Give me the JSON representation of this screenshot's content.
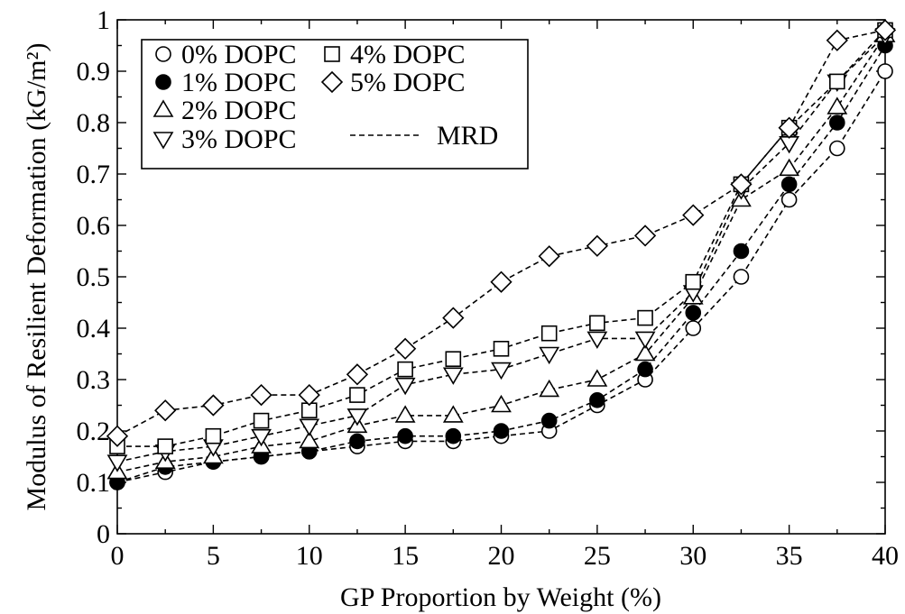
{
  "chart_data": {
    "type": "line",
    "xlabel": "GP Proportion by Weight (%)",
    "ylabel": "Modulus of Resilient Deformation (kG/m²)",
    "xlim": [
      0,
      40
    ],
    "ylim": [
      0,
      1
    ],
    "xticks": [
      0,
      5,
      10,
      15,
      20,
      25,
      30,
      35,
      40
    ],
    "yticks": [
      0,
      0.1,
      0.2,
      0.3,
      0.4,
      0.5,
      0.6,
      0.7,
      0.8,
      0.9,
      1
    ],
    "ytick_labels": [
      "0",
      "0.1",
      "0.2",
      "0.3",
      "0.4",
      "0.5",
      "0.6",
      "0.7",
      "0.8",
      "0.9",
      "1"
    ],
    "grid": false,
    "legend_position": "top-left",
    "line_legend_label": "MRD",
    "x": [
      0,
      2.5,
      5,
      7.5,
      10,
      12.5,
      15,
      17.5,
      20,
      22.5,
      25,
      27.5,
      30,
      32.5,
      35,
      37.5,
      40
    ],
    "series": [
      {
        "name": "0% DOPC",
        "marker": "circle-open",
        "values": [
          0.1,
          0.12,
          0.14,
          0.15,
          0.16,
          0.17,
          0.18,
          0.18,
          0.19,
          0.2,
          0.25,
          0.3,
          0.4,
          0.5,
          0.65,
          0.75,
          0.9
        ]
      },
      {
        "name": "1% DOPC",
        "marker": "circle-filled",
        "values": [
          0.1,
          0.13,
          0.14,
          0.15,
          0.16,
          0.18,
          0.19,
          0.19,
          0.2,
          0.22,
          0.26,
          0.32,
          0.43,
          0.55,
          0.68,
          0.8,
          0.95
        ]
      },
      {
        "name": "2% DOPC",
        "marker": "triangle-up",
        "values": [
          0.12,
          0.14,
          0.15,
          0.17,
          0.18,
          0.21,
          0.23,
          0.23,
          0.25,
          0.28,
          0.3,
          0.35,
          0.46,
          0.65,
          0.71,
          0.83,
          0.97
        ]
      },
      {
        "name": "3% DOPC",
        "marker": "triangle-down",
        "values": [
          0.14,
          0.16,
          0.17,
          0.19,
          0.21,
          0.23,
          0.29,
          0.31,
          0.32,
          0.35,
          0.38,
          0.38,
          0.47,
          0.67,
          0.76,
          0.88,
          0.97
        ]
      },
      {
        "name": "4% DOPC",
        "marker": "square-open",
        "values": [
          0.17,
          0.17,
          0.19,
          0.22,
          0.24,
          0.27,
          0.32,
          0.34,
          0.36,
          0.39,
          0.41,
          0.42,
          0.49,
          0.68,
          0.79,
          0.88,
          0.98
        ]
      },
      {
        "name": "5% DOPC",
        "marker": "diamond-open",
        "values": [
          0.19,
          0.24,
          0.25,
          0.27,
          0.27,
          0.31,
          0.36,
          0.42,
          0.49,
          0.54,
          0.56,
          0.58,
          0.62,
          0.68,
          0.79,
          0.96,
          0.98
        ]
      }
    ]
  }
}
